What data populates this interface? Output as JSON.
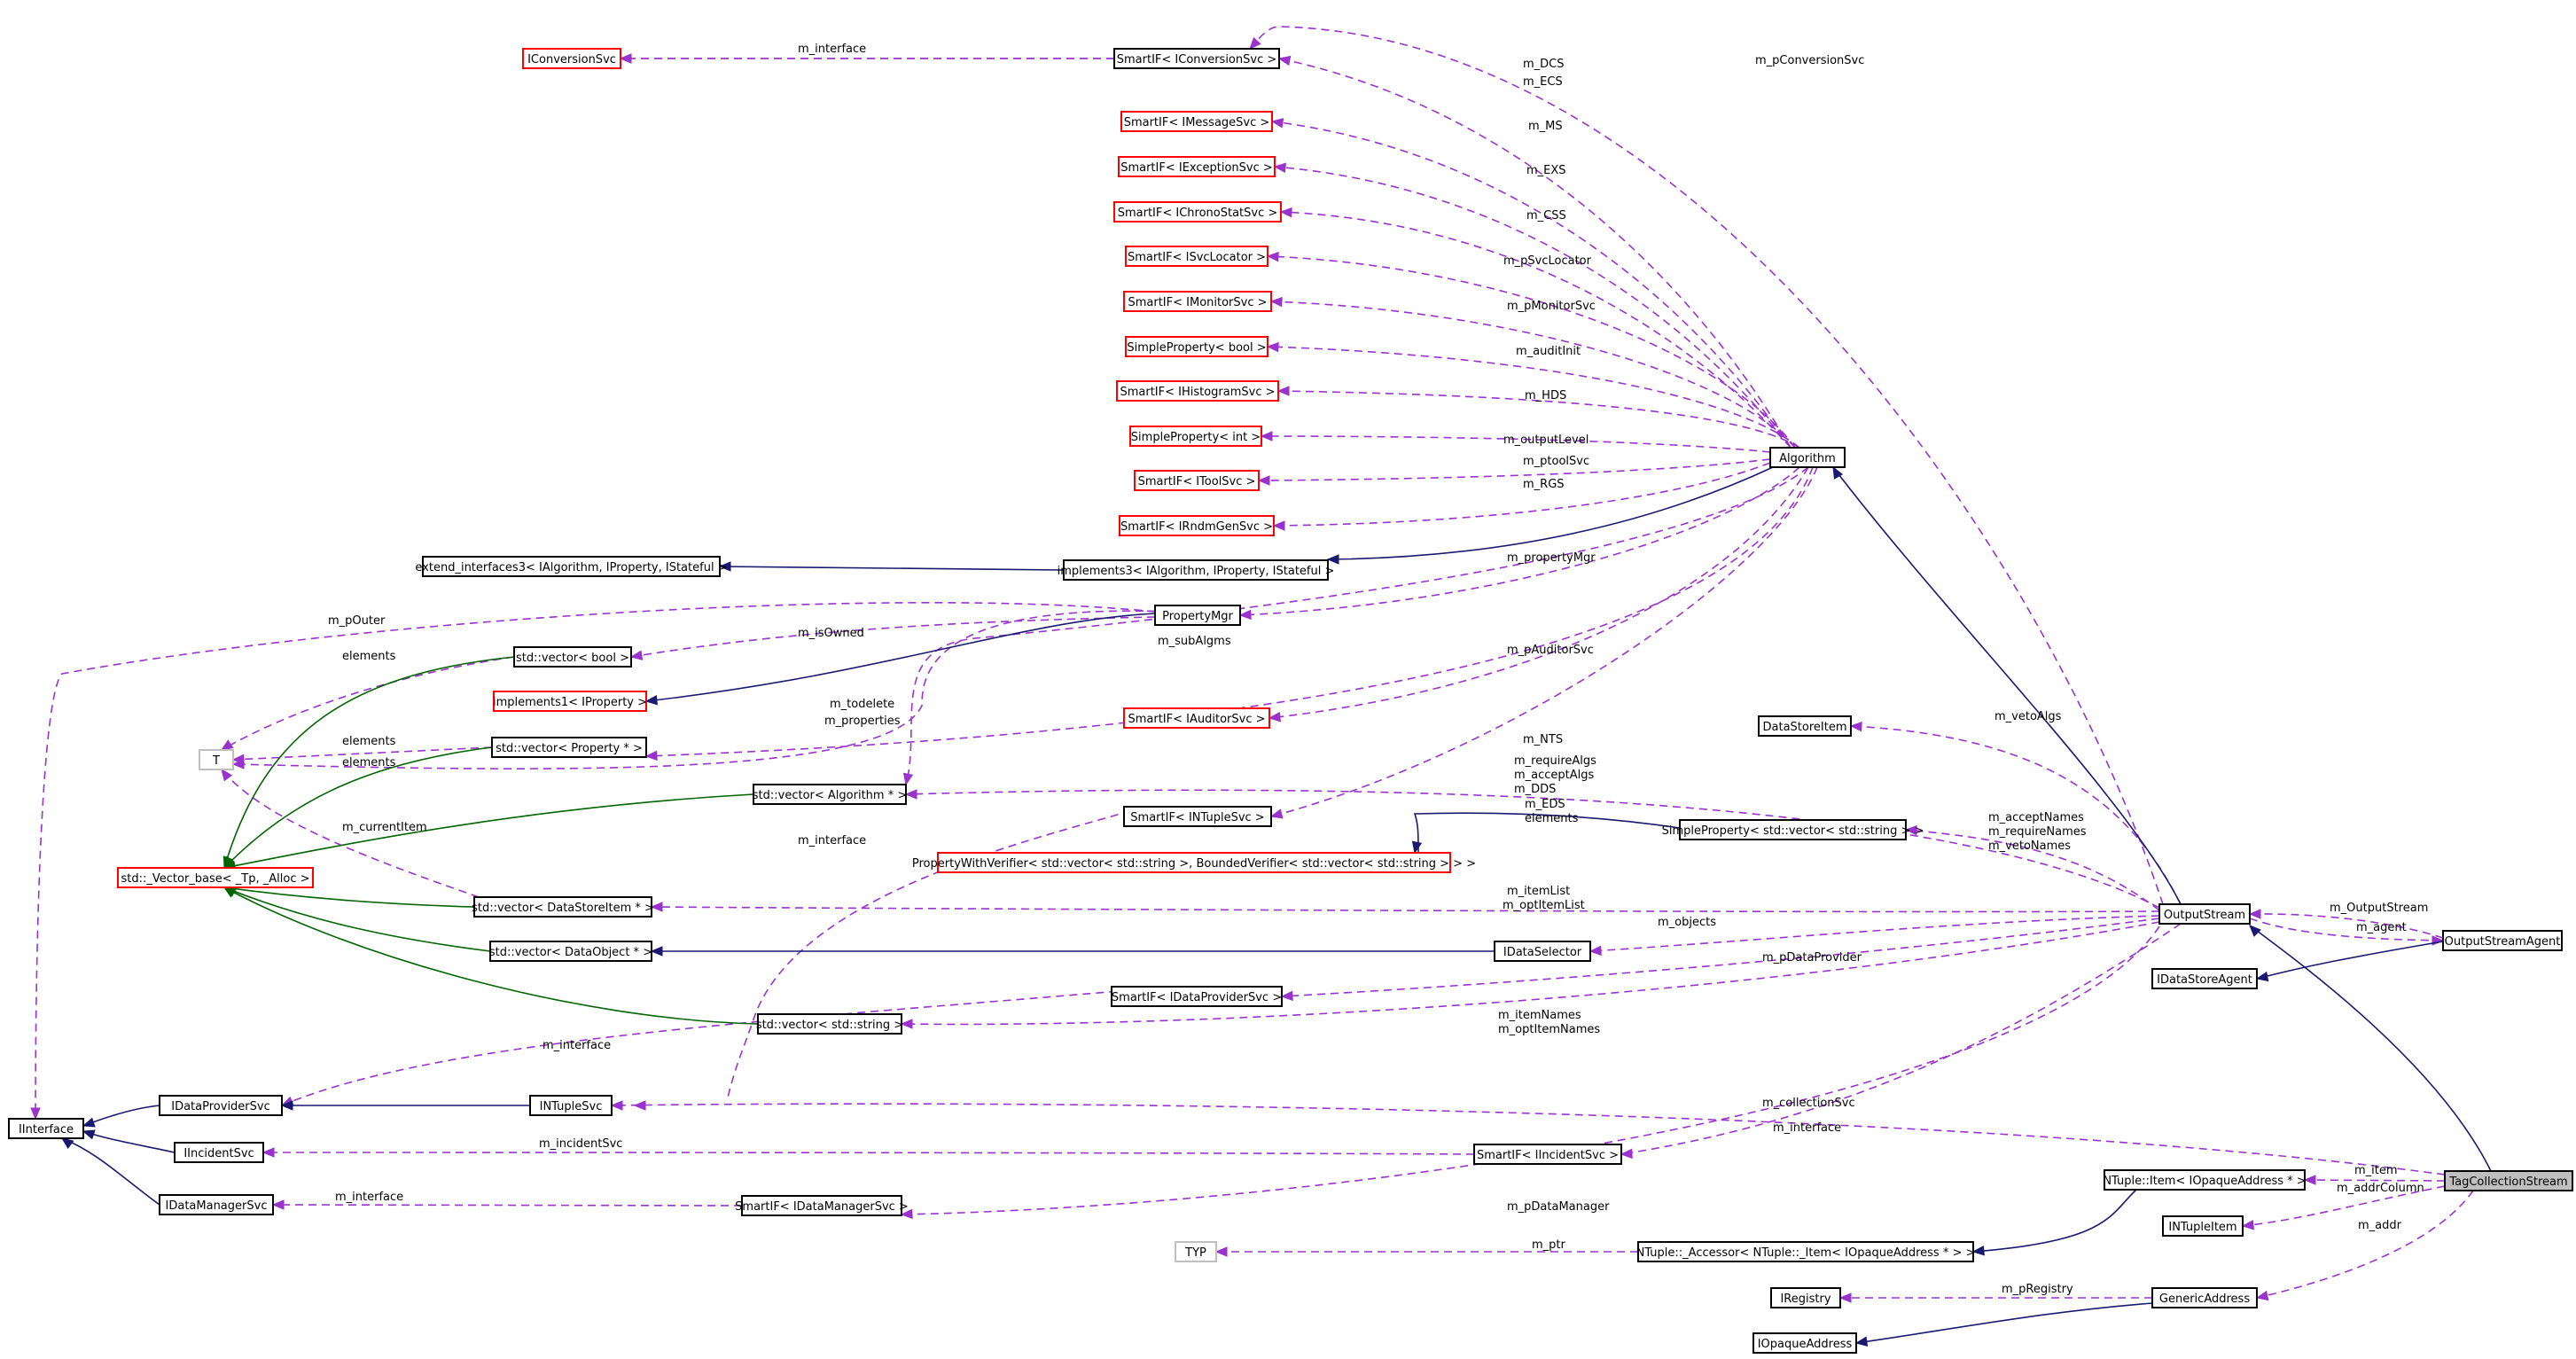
{
  "diagram": {
    "nodes": [
      {
        "id": "IConversionSvc",
        "label": "IConversionSvc",
        "style": "red"
      },
      {
        "id": "SmartIF_IConversionSvc",
        "label": "SmartIF< IConversionSvc >",
        "style": "std"
      },
      {
        "id": "SmartIF_IMessageSvc",
        "label": "SmartIF< IMessageSvc >",
        "style": "red"
      },
      {
        "id": "SmartIF_IExceptionSvc",
        "label": "SmartIF< IExceptionSvc >",
        "style": "red"
      },
      {
        "id": "SmartIF_IChronoStatSvc",
        "label": "SmartIF< IChronoStatSvc >",
        "style": "red"
      },
      {
        "id": "SmartIF_ISvcLocator",
        "label": "SmartIF< ISvcLocator >",
        "style": "red"
      },
      {
        "id": "SmartIF_IMonitorSvc",
        "label": "SmartIF< IMonitorSvc >",
        "style": "red"
      },
      {
        "id": "SimpleProperty_bool",
        "label": "SimpleProperty< bool >",
        "style": "red"
      },
      {
        "id": "SmartIF_IHistogramSvc",
        "label": "SmartIF< IHistogramSvc >",
        "style": "red"
      },
      {
        "id": "SimpleProperty_int",
        "label": "SimpleProperty< int >",
        "style": "red"
      },
      {
        "id": "SmartIF_IToolSvc",
        "label": "SmartIF< IToolSvc >",
        "style": "red"
      },
      {
        "id": "SmartIF_IRndmGenSvc",
        "label": "SmartIF< IRndmGenSvc >",
        "style": "red"
      },
      {
        "id": "Algorithm",
        "label": "Algorithm",
        "style": "std"
      },
      {
        "id": "extend_interfaces3",
        "label": "extend_interfaces3< IAlgorithm, IProperty, IStateful >",
        "style": "std"
      },
      {
        "id": "implements3",
        "label": "implements3< IAlgorithm, IProperty, IStateful >",
        "style": "std"
      },
      {
        "id": "PropertyMgr",
        "label": "PropertyMgr",
        "style": "std"
      },
      {
        "id": "vector_bool",
        "label": "std::vector< bool >",
        "style": "std"
      },
      {
        "id": "implements1",
        "label": "implements1< IProperty >",
        "style": "red"
      },
      {
        "id": "SmartIF_IAuditorSvc",
        "label": "SmartIF< IAuditorSvc >",
        "style": "red"
      },
      {
        "id": "T",
        "label": "T",
        "style": "gray"
      },
      {
        "id": "vector_Property",
        "label": "std::vector< Property * >",
        "style": "std"
      },
      {
        "id": "vector_Algorithm",
        "label": "std::vector< Algorithm * >",
        "style": "std"
      },
      {
        "id": "DataStoreItem",
        "label": "DataStoreItem",
        "style": "std"
      },
      {
        "id": "SmartIF_INTupleSvc",
        "label": "SmartIF< INTupleSvc >",
        "style": "std"
      },
      {
        "id": "SimpleProperty_vector_string",
        "label": "SimpleProperty< std::vector< std::string > >",
        "style": "std"
      },
      {
        "id": "PropertyWithVerifier",
        "label": "PropertyWithVerifier< std::vector< std::string >, BoundedVerifier< std::vector< std::string > > >",
        "style": "red"
      },
      {
        "id": "Vector_base",
        "label": "std::_Vector_base< _Tp, _Alloc >",
        "style": "red"
      },
      {
        "id": "vector_DataStoreItem",
        "label": "std::vector< DataStoreItem * >",
        "style": "std"
      },
      {
        "id": "OutputStream",
        "label": "OutputStream",
        "style": "std"
      },
      {
        "id": "vector_DataObject",
        "label": "std::vector< DataObject * >",
        "style": "std"
      },
      {
        "id": "IDataSelector",
        "label": "IDataSelector",
        "style": "std"
      },
      {
        "id": "OutputStreamAgent",
        "label": "OutputStreamAgent",
        "style": "std"
      },
      {
        "id": "IDataStoreAgent",
        "label": "IDataStoreAgent",
        "style": "std"
      },
      {
        "id": "SmartIF_IDataProviderSvc",
        "label": "SmartIF< IDataProviderSvc >",
        "style": "std"
      },
      {
        "id": "vector_string",
        "label": "std::vector< std::string >",
        "style": "std"
      },
      {
        "id": "IDataProviderSvc",
        "label": "IDataProviderSvc",
        "style": "std"
      },
      {
        "id": "INTupleSvc",
        "label": "INTupleSvc",
        "style": "std"
      },
      {
        "id": "IInterface",
        "label": "IInterface",
        "style": "std"
      },
      {
        "id": "IIncidentSvc",
        "label": "IIncidentSvc",
        "style": "std"
      },
      {
        "id": "SmartIF_IIncidentSvc",
        "label": "SmartIF< IIncidentSvc >",
        "style": "std"
      },
      {
        "id": "TagCollectionStream",
        "label": "TagCollectionStream",
        "style": "hl"
      },
      {
        "id": "NTuple_Item",
        "label": "NTuple::Item< IOpaqueAddress * >",
        "style": "std"
      },
      {
        "id": "IDataManagerSvc",
        "label": "IDataManagerSvc",
        "style": "std"
      },
      {
        "id": "SmartIF_IDataManagerSvc",
        "label": "SmartIF< IDataManagerSvc >",
        "style": "std"
      },
      {
        "id": "INTupleItem",
        "label": "INTupleItem",
        "style": "std"
      },
      {
        "id": "TYP",
        "label": "TYP",
        "style": "gray"
      },
      {
        "id": "NTuple_Accessor",
        "label": "NTuple::_Accessor< NTuple::_Item< IOpaqueAddress * > >",
        "style": "std"
      },
      {
        "id": "IRegistry",
        "label": "IRegistry",
        "style": "std"
      },
      {
        "id": "GenericAddress",
        "label": "GenericAddress",
        "style": "std"
      },
      {
        "id": "IOpaqueAddress",
        "label": "IOpaqueAddress",
        "style": "std"
      }
    ],
    "edge_labels": [
      "m_interface",
      "m_pConversionSvc",
      "m_DCS",
      "m_ECS",
      "m_MS",
      "m_EXS",
      "m_CSS",
      "m_pSvcLocator",
      "m_pMonitorSvc",
      "m_auditInit",
      "m_HDS",
      "m_outputLevel",
      "m_ptoolSvc",
      "m_RGS",
      "m_propertyMgr",
      "m_pOuter",
      "m_isOwned",
      "elements",
      "m_subAlgms",
      "m_pAuditorSvc",
      "m_todelete",
      "m_properties",
      "m_NTS",
      "elements",
      "elements",
      "m_currentItem",
      "m_vetoAlgs",
      "m_requireAlgs",
      "m_acceptAlgs",
      "m_DDS",
      "m_EDS",
      "elements",
      "m_interface",
      "m_acceptNames",
      "m_requireNames",
      "m_vetoNames",
      "m_itemList",
      "m_optItemList",
      "m_objects",
      "m_OutputStream",
      "m_agent",
      "m_pDataProvider",
      "m_interface",
      "m_itemNames",
      "m_optItemNames",
      "m_collectionSvc",
      "m_interface",
      "m_incidentSvc",
      "m_item",
      "m_addrColumn",
      "m_interface",
      "m_pDataManager",
      "m_addr",
      "m_ptr",
      "m_pRegistry"
    ]
  }
}
